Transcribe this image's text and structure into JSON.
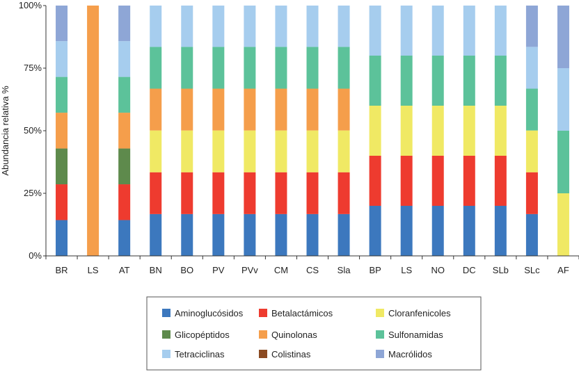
{
  "chart_data": {
    "type": "bar",
    "stacked": true,
    "normalized": true,
    "title": "",
    "xlabel": "",
    "ylabel": "Abundancia relativa %",
    "ylim": [
      0,
      100
    ],
    "yticks": [
      "0%",
      "25%",
      "50%",
      "75%",
      "100%"
    ],
    "grid": false,
    "legend_position": "bottom",
    "categories": [
      "BR",
      "LS",
      "AT",
      "BN",
      "BO",
      "PV",
      "PVv",
      "CM",
      "CS",
      "Sla",
      "BP",
      "LS",
      "NO",
      "DC",
      "SLb",
      "SLc",
      "AF"
    ],
    "series": [
      {
        "name": "Aminoglucósidos",
        "color": "#3c78be",
        "values": [
          14.3,
          0,
          14.3,
          16.7,
          16.7,
          16.7,
          16.7,
          16.7,
          16.7,
          16.7,
          20,
          20,
          20,
          20,
          20,
          16.7,
          0
        ]
      },
      {
        "name": "Betalactámicos",
        "color": "#ee3b2f",
        "values": [
          14.3,
          0,
          14.3,
          16.7,
          16.7,
          16.7,
          16.7,
          16.7,
          16.7,
          16.7,
          20,
          20,
          20,
          20,
          20,
          16.7,
          0
        ]
      },
      {
        "name": "Cloranfenicoles",
        "color": "#f0e964",
        "values": [
          0,
          0,
          0,
          16.7,
          16.7,
          16.7,
          16.7,
          16.7,
          16.7,
          16.7,
          20,
          20,
          20,
          20,
          20,
          16.7,
          25
        ]
      },
      {
        "name": "Glicopéptidos",
        "color": "#5e8a4c",
        "values": [
          14.3,
          0,
          14.3,
          0,
          0,
          0,
          0,
          0,
          0,
          0,
          0,
          0,
          0,
          0,
          0,
          0,
          0
        ]
      },
      {
        "name": "Quinolonas",
        "color": "#f59e4b",
        "values": [
          14.3,
          100,
          14.3,
          16.7,
          16.7,
          16.7,
          16.7,
          16.7,
          16.7,
          16.7,
          0,
          0,
          0,
          0,
          0,
          0,
          0
        ]
      },
      {
        "name": "Sulfonamidas",
        "color": "#5cc29a",
        "values": [
          14.3,
          0,
          14.3,
          16.7,
          16.7,
          16.7,
          16.7,
          16.7,
          16.7,
          16.7,
          20,
          20,
          20,
          20,
          20,
          16.7,
          25
        ]
      },
      {
        "name": "Tetraciclinas",
        "color": "#a6cdee",
        "values": [
          14.3,
          0,
          14.3,
          16.5,
          16.5,
          16.5,
          16.5,
          16.5,
          16.5,
          16.5,
          20,
          20,
          20,
          20,
          20,
          16.7,
          25
        ]
      },
      {
        "name": "Colistinas",
        "color": "#8b4a22",
        "values": [
          0,
          0,
          0,
          0,
          0,
          0,
          0,
          0,
          0,
          0,
          0,
          0,
          0,
          0,
          0,
          0,
          0
        ]
      },
      {
        "name": "Macrólidos",
        "color": "#8ea6d6",
        "values": [
          14.2,
          0,
          14.2,
          0,
          0,
          0,
          0,
          0,
          0,
          0,
          0,
          0,
          0,
          0,
          0,
          16.5,
          25
        ]
      }
    ]
  }
}
